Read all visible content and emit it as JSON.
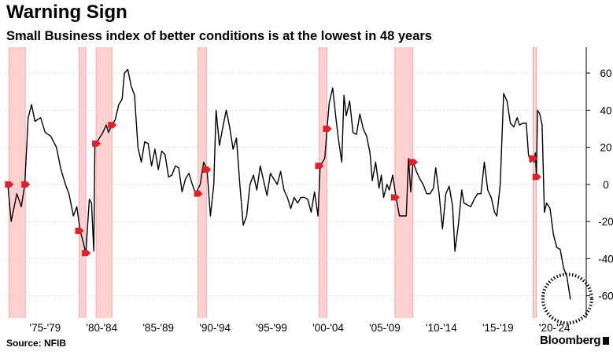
{
  "header": {
    "title": "Warning Sign",
    "subtitle": "Small Business index of better conditions is at the lowest in 48 years"
  },
  "footer": {
    "source": "Source: NFIB",
    "brand": "Bloomberg"
  },
  "colors": {
    "line": "#000000",
    "recession": "#ffd0d0",
    "recession_edge": "#ff9a9a",
    "marker": "#e0202a",
    "grid": "#d9d9d9"
  },
  "chart_data": {
    "type": "line",
    "title": "",
    "xlabel": "",
    "ylabel": "",
    "xlim": [
      1973.5,
      2024.8
    ],
    "ylim": [
      -72,
      74
    ],
    "yticks": [
      -60,
      -40,
      -20,
      0,
      20,
      40,
      60
    ],
    "xtick_labels": [
      "'75-'79",
      "'80-'84",
      "'85-'89",
      "'90-'94",
      "'95-'99",
      "'00-'04",
      "'05-'09",
      "'10-'14",
      "'15-'19",
      "'20-'24"
    ],
    "xtick_positions": [
      1977,
      1982,
      1987,
      1992,
      1997,
      2002,
      2007,
      2012,
      2017,
      2022
    ],
    "recessions": [
      [
        1973.8,
        1975.25
      ],
      [
        1980.0,
        1980.6
      ],
      [
        1981.5,
        1982.9
      ],
      [
        1990.5,
        1991.25
      ],
      [
        2001.2,
        2001.9
      ],
      [
        2007.9,
        2009.5
      ],
      [
        2020.1,
        2020.4
      ]
    ],
    "series": [
      {
        "values": [
          [
            1973.7,
            0
          ],
          [
            1974.0,
            -20
          ],
          [
            1974.5,
            -5
          ],
          [
            1974.9,
            -12
          ],
          [
            1975.2,
            0
          ],
          [
            1975.5,
            36
          ],
          [
            1975.8,
            43
          ],
          [
            1976.1,
            34
          ],
          [
            1976.6,
            36
          ],
          [
            1977.0,
            28
          ],
          [
            1977.5,
            26
          ],
          [
            1978.0,
            20
          ],
          [
            1978.4,
            8
          ],
          [
            1978.8,
            0
          ],
          [
            1979.1,
            -5
          ],
          [
            1979.5,
            -17
          ],
          [
            1979.8,
            -12
          ],
          [
            1980.1,
            -25
          ],
          [
            1980.4,
            -32
          ],
          [
            1980.6,
            -37
          ],
          [
            1980.9,
            -8
          ],
          [
            1981.1,
            -10
          ],
          [
            1981.3,
            -36
          ],
          [
            1981.4,
            22
          ],
          [
            1981.6,
            23
          ],
          [
            1981.8,
            25
          ],
          [
            1982.1,
            28
          ],
          [
            1982.4,
            32
          ],
          [
            1982.6,
            28
          ],
          [
            1982.9,
            32
          ],
          [
            1983.2,
            35
          ],
          [
            1983.5,
            43
          ],
          [
            1983.8,
            46
          ],
          [
            1984.0,
            60
          ],
          [
            1984.3,
            62
          ],
          [
            1984.6,
            53
          ],
          [
            1984.9,
            48
          ],
          [
            1985.2,
            20
          ],
          [
            1985.5,
            12
          ],
          [
            1985.8,
            23
          ],
          [
            1986.1,
            22
          ],
          [
            1986.4,
            10
          ],
          [
            1986.7,
            19
          ],
          [
            1987.0,
            8
          ],
          [
            1987.3,
            18
          ],
          [
            1987.6,
            16
          ],
          [
            1987.9,
            4
          ],
          [
            1988.2,
            5
          ],
          [
            1988.5,
            10
          ],
          [
            1988.8,
            9
          ],
          [
            1989.1,
            -4
          ],
          [
            1989.4,
            3
          ],
          [
            1989.7,
            6
          ],
          [
            1990.0,
            0
          ],
          [
            1990.3,
            -5
          ],
          [
            1990.7,
            0
          ],
          [
            1991.0,
            12
          ],
          [
            1991.3,
            8
          ],
          [
            1991.6,
            -17
          ],
          [
            1991.9,
            0
          ],
          [
            1992.1,
            40
          ],
          [
            1992.4,
            21
          ],
          [
            1992.7,
            31
          ],
          [
            1993.0,
            40
          ],
          [
            1993.3,
            31
          ],
          [
            1993.6,
            19
          ],
          [
            1993.9,
            25
          ],
          [
            1994.2,
            0
          ],
          [
            1994.5,
            -22
          ],
          [
            1994.8,
            -17
          ],
          [
            1995.1,
            0
          ],
          [
            1995.4,
            5
          ],
          [
            1995.7,
            -3
          ],
          [
            1996.0,
            10
          ],
          [
            1996.3,
            2
          ],
          [
            1996.6,
            -6
          ],
          [
            1996.9,
            6
          ],
          [
            1997.2,
            3
          ],
          [
            1997.5,
            0
          ],
          [
            1997.8,
            7
          ],
          [
            1998.1,
            -3
          ],
          [
            1998.4,
            -7
          ],
          [
            1998.7,
            -13
          ],
          [
            1999.0,
            -7
          ],
          [
            1999.3,
            -10
          ],
          [
            1999.6,
            -7
          ],
          [
            1999.9,
            -7
          ],
          [
            2000.2,
            -8
          ],
          [
            2000.5,
            -15
          ],
          [
            2000.8,
            -4
          ],
          [
            2001.1,
            -17
          ],
          [
            2001.3,
            10
          ],
          [
            2001.5,
            12
          ],
          [
            2001.7,
            14
          ],
          [
            2001.9,
            30
          ],
          [
            2002.1,
            44
          ],
          [
            2002.4,
            52
          ],
          [
            2002.7,
            35
          ],
          [
            2002.9,
            25
          ],
          [
            2003.2,
            12
          ],
          [
            2003.4,
            48
          ],
          [
            2003.6,
            37
          ],
          [
            2003.9,
            45
          ],
          [
            2004.2,
            28
          ],
          [
            2004.5,
            27
          ],
          [
            2004.8,
            38
          ],
          [
            2005.1,
            30
          ],
          [
            2005.4,
            26
          ],
          [
            2005.7,
            17
          ],
          [
            2005.9,
            2
          ],
          [
            2006.2,
            12
          ],
          [
            2006.5,
            -2
          ],
          [
            2006.7,
            5
          ],
          [
            2006.9,
            -7
          ],
          [
            2007.2,
            0
          ],
          [
            2007.4,
            -3
          ],
          [
            2007.7,
            5
          ],
          [
            2008.0,
            -7
          ],
          [
            2008.3,
            -17
          ],
          [
            2008.6,
            -17
          ],
          [
            2008.9,
            -17
          ],
          [
            2009.1,
            14
          ],
          [
            2009.3,
            -4
          ],
          [
            2009.5,
            12
          ],
          [
            2009.8,
            7
          ],
          [
            2010.1,
            3
          ],
          [
            2010.4,
            0
          ],
          [
            2010.7,
            -5
          ],
          [
            2011.0,
            -5
          ],
          [
            2011.3,
            -2
          ],
          [
            2011.5,
            9
          ],
          [
            2011.8,
            -5
          ],
          [
            2012.1,
            -24
          ],
          [
            2012.4,
            -5
          ],
          [
            2012.7,
            -1
          ],
          [
            2013.0,
            -12
          ],
          [
            2013.2,
            -36
          ],
          [
            2013.5,
            -22
          ],
          [
            2013.8,
            -3
          ],
          [
            2014.0,
            -10
          ],
          [
            2014.3,
            -11
          ],
          [
            2014.6,
            -12
          ],
          [
            2014.9,
            -8
          ],
          [
            2015.2,
            -5
          ],
          [
            2015.5,
            -5
          ],
          [
            2015.8,
            12
          ],
          [
            2016.1,
            -3
          ],
          [
            2016.4,
            -7
          ],
          [
            2016.7,
            -15
          ],
          [
            2016.9,
            -17
          ],
          [
            2017.2,
            0
          ],
          [
            2017.5,
            49
          ],
          [
            2017.8,
            45
          ],
          [
            2018.1,
            33
          ],
          [
            2018.4,
            31
          ],
          [
            2018.7,
            36
          ],
          [
            2018.9,
            32
          ],
          [
            2019.2,
            33
          ],
          [
            2019.5,
            33
          ],
          [
            2019.7,
            16
          ],
          [
            2019.9,
            12
          ],
          [
            2020.1,
            14
          ],
          [
            2020.2,
            12
          ],
          [
            2020.3,
            17
          ],
          [
            2020.4,
            4
          ],
          [
            2020.5,
            40
          ],
          [
            2020.7,
            38
          ],
          [
            2020.9,
            32
          ],
          [
            2021.1,
            -15
          ],
          [
            2021.3,
            -10
          ],
          [
            2021.6,
            -13
          ],
          [
            2021.9,
            -27
          ],
          [
            2022.2,
            -34
          ],
          [
            2022.5,
            -35
          ],
          [
            2022.8,
            -45
          ],
          [
            2023.1,
            -50
          ],
          [
            2023.4,
            -62
          ]
        ]
      }
    ],
    "highlight": {
      "center": [
        2023.4,
        -62
      ],
      "style": "dotted ring"
    },
    "grid": "horizontal dotted",
    "y_axis_side": "right"
  }
}
